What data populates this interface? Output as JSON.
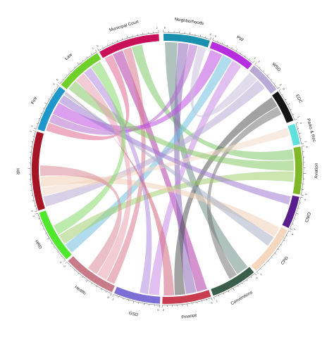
{
  "chart_data": {
    "type": "chord",
    "title": "",
    "sectors": [
      {
        "name": "Neighborhoods",
        "color": "#1b8fae",
        "tick_max": "2"
      },
      {
        "name": "PW",
        "color": "#b72de0",
        "tick_max": "2"
      },
      {
        "name": "WSD",
        "color": "#b9a9d6",
        "tick_max": "2"
      },
      {
        "name": "EDC",
        "color": "#151515",
        "tick_max": "1"
      },
      {
        "name": "Parks & Rec",
        "color": "#5fe0dd",
        "tick_max": "1"
      },
      {
        "name": "Aviation",
        "color": "#80b82a",
        "tick_max": "2"
      },
      {
        "name": "CMO",
        "color": "#5a1e8c",
        "tick_max": "1"
      },
      {
        "name": "CPD",
        "color": "#f5d7c0",
        "tick_max": "2"
      },
      {
        "name": "Conventions",
        "color": "#3a5e4a",
        "tick_max": "2"
      },
      {
        "name": "Finance",
        "color": "#c83d4f",
        "tick_max": "2"
      },
      {
        "name": "GSD",
        "color": "#7d6fd6",
        "tick_max": "2"
      },
      {
        "name": "Health",
        "color": "#c97a88",
        "tick_max": "2"
      },
      {
        "name": "HRD",
        "color": "#4fe82d",
        "tick_max": "2"
      },
      {
        "name": "HR",
        "color": "#a51526",
        "tick_max": "2"
      },
      {
        "name": "Fire",
        "color": "#1e98cc",
        "tick_max": "3"
      },
      {
        "name": "Law",
        "color": "#6fd02a",
        "tick_max": "2"
      },
      {
        "name": "Municipal Court",
        "color": "#c9115a",
        "tick_max": "2"
      }
    ],
    "links": [
      {
        "from": "Municipal Court",
        "to": "Fire",
        "value": 0.4,
        "color": "#e06a90"
      },
      {
        "from": "Municipal Court",
        "to": "Finance",
        "value": 0.5,
        "color": "#b03aa8"
      },
      {
        "from": "Municipal Court",
        "to": "Health",
        "value": 0.4,
        "color": "#d87a8e"
      },
      {
        "from": "Municipal Court",
        "to": "Aviation",
        "value": 0.5,
        "color": "#7ec86a"
      },
      {
        "from": "Neighborhoods",
        "to": "Conventions",
        "value": 0.6,
        "color": "#6f8f87"
      },
      {
        "from": "Neighborhoods",
        "to": "Finance",
        "value": 0.5,
        "color": "#8a6ab8"
      },
      {
        "from": "Neighborhoods",
        "to": "Fire",
        "value": 0.4,
        "color": "#b46fcf"
      },
      {
        "from": "PW",
        "to": "Fire",
        "value": 0.6,
        "color": "#c04fe0"
      },
      {
        "from": "PW",
        "to": "HRD",
        "value": 0.5,
        "color": "#6fc0e0"
      },
      {
        "from": "PW",
        "to": "GSD",
        "value": 0.5,
        "color": "#c88ae6"
      },
      {
        "from": "WSD",
        "to": "Neighborhoods",
        "value": 0.5,
        "color": "#c8c0dc"
      },
      {
        "from": "WSD",
        "to": "HR",
        "value": 0.5,
        "color": "#b6a9d4"
      },
      {
        "from": "EDC",
        "to": "Finance",
        "value": 0.5,
        "color": "#555555"
      },
      {
        "from": "EDC",
        "to": "Conventions",
        "value": 0.4,
        "color": "#777777"
      },
      {
        "from": "Parks & Rec",
        "to": "HR",
        "value": 0.4,
        "color": "#f3dac8"
      },
      {
        "from": "Aviation",
        "to": "Law",
        "value": 0.5,
        "color": "#86c866"
      },
      {
        "from": "Aviation",
        "to": "HRD",
        "value": 0.5,
        "color": "#a2d070"
      },
      {
        "from": "CMO",
        "to": "Fire",
        "value": 0.4,
        "color": "#9e7cd0"
      },
      {
        "from": "CPD",
        "to": "HR",
        "value": 0.5,
        "color": "#f1cfb8"
      },
      {
        "from": "CPD",
        "to": "Fire",
        "value": 0.5,
        "color": "#a8b0c6"
      },
      {
        "from": "Health",
        "to": "Law",
        "value": 0.5,
        "color": "#e8a0b0"
      },
      {
        "from": "GSD",
        "to": "Law",
        "value": 0.4,
        "color": "#b08ae0"
      },
      {
        "from": "HRD",
        "to": "Law",
        "value": 0.5,
        "color": "#86d86a"
      },
      {
        "from": "HR",
        "to": "Health",
        "value": 0.5,
        "color": "#d98a98"
      },
      {
        "from": "Finance",
        "to": "Fire",
        "value": 0.5,
        "color": "#d0687e"
      }
    ]
  }
}
